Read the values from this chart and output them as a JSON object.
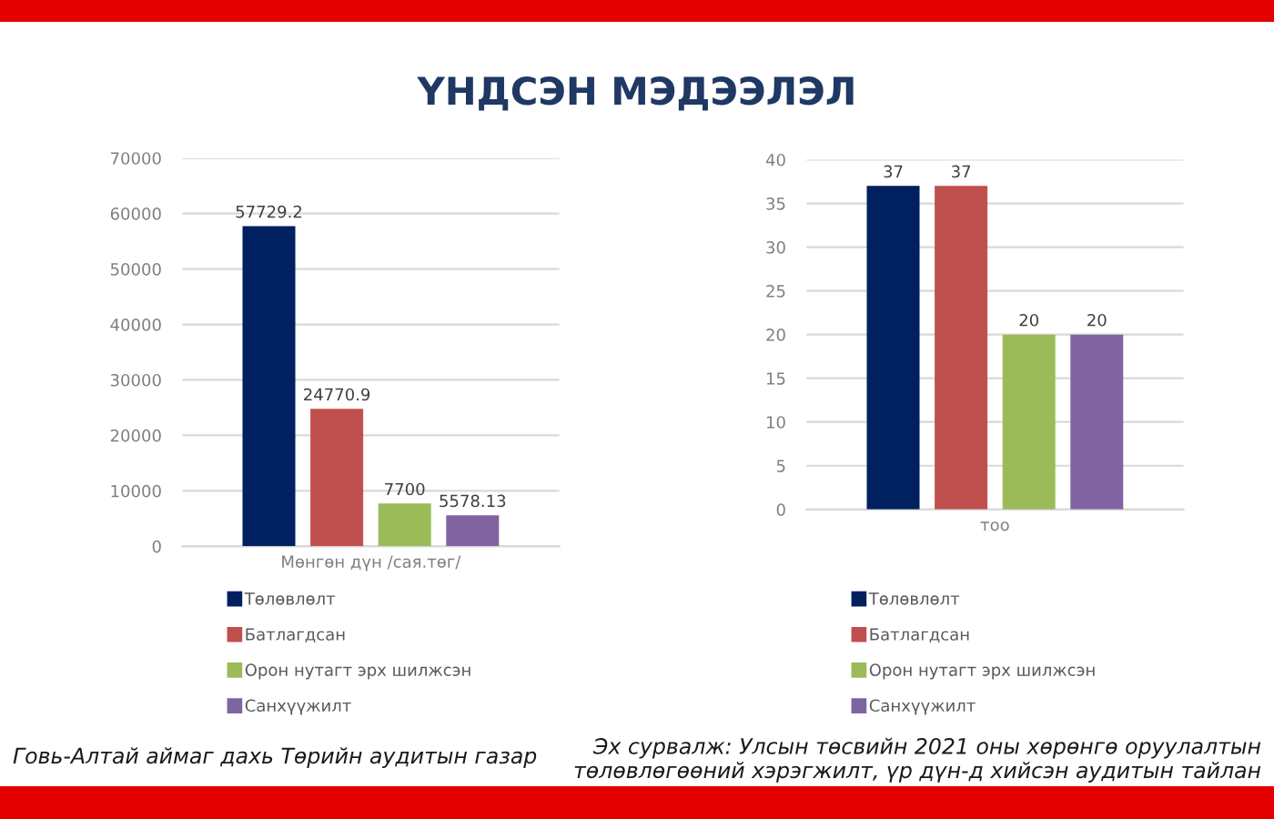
{
  "chart_data": [
    {
      "type": "bar",
      "title": "ҮНДСЭН МЭДЭЭЛЭЛ",
      "categories": [
        "Мөнгөн дүн /сая.төг/"
      ],
      "series": [
        {
          "name": "Төлөвлөлт",
          "color": "#002060",
          "values": [
            57729.2
          ]
        },
        {
          "name": "Батлагдсан",
          "color": "#c0504d",
          "values": [
            24770.9
          ]
        },
        {
          "name": "Орон нутагт эрх шилжсэн",
          "color": "#9bbb59",
          "values": [
            7700
          ]
        },
        {
          "name": "Санхүүжилт",
          "color": "#8064a2",
          "values": [
            5578.13
          ]
        }
      ],
      "ylim": [
        0,
        70000
      ],
      "yticks": [
        0,
        10000,
        20000,
        30000,
        40000,
        50000,
        60000,
        70000
      ],
      "grid": "y",
      "legend": "bottom",
      "data_labels": true,
      "annotations": [
        "Говь-Алтай аймаг дахь Төрийн аудитын газар"
      ]
    },
    {
      "type": "bar",
      "categories": [
        "тоо"
      ],
      "series": [
        {
          "name": "Төлөвлөлт",
          "color": "#002060",
          "values": [
            37
          ]
        },
        {
          "name": "Батлагдсан",
          "color": "#c0504d",
          "values": [
            37
          ]
        },
        {
          "name": "Орон нутагт эрх шилжсэн",
          "color": "#9bbb59",
          "values": [
            20
          ]
        },
        {
          "name": "Санхүүжилт",
          "color": "#8064a2",
          "values": [
            20
          ]
        }
      ],
      "ylim": [
        0,
        40
      ],
      "yticks": [
        0,
        5,
        10,
        15,
        20,
        25,
        30,
        35,
        40
      ],
      "grid": "y",
      "legend": "bottom",
      "data_labels": true,
      "annotations": [
        "Эх сурвалж: Улсын төсвийн 2021 оны хөрөнгө оруулалтын\nтөлөвлөгөөний хэрэгжилт, үр дүн-д хийсэн аудитын тайлан"
      ]
    }
  ]
}
